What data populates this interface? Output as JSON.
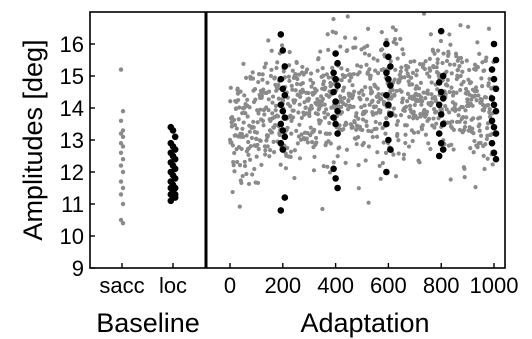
{
  "chart_data": {
    "type": "scatter",
    "ylabel": "Amplitudes [deg]",
    "ylim": [
      9,
      17
    ],
    "yticks": [
      9,
      10,
      11,
      12,
      13,
      14,
      15,
      16
    ],
    "grid": false,
    "baseline_panel": {
      "group_label": "Baseline",
      "categories": [
        "sacc",
        "loc"
      ],
      "series": [
        {
          "category": "sacc",
          "color": "#8a8a8a",
          "values": [
            15.2,
            13.9,
            13.6,
            13.3,
            13.2,
            13.1,
            12.9,
            12.8,
            12.6,
            12.4,
            12.2,
            12.0,
            11.7,
            11.5,
            11.3,
            11.0,
            10.5,
            10.4
          ]
        },
        {
          "category": "loc",
          "color": "#000000",
          "values": [
            13.4,
            13.3,
            13.1,
            12.9,
            12.8,
            12.7,
            12.6,
            12.5,
            12.4,
            12.3,
            12.2,
            12.1,
            12.0,
            11.9,
            11.8,
            11.7,
            11.6,
            11.5,
            11.5,
            11.4,
            11.3,
            11.3,
            11.2,
            11.2,
            11.1
          ]
        }
      ]
    },
    "adaptation_panel": {
      "group_label": "Adaptation",
      "xlim": [
        -50,
        1050
      ],
      "xticks": [
        0,
        200,
        400,
        600,
        800,
        1000
      ],
      "series": [
        {
          "name": "",
          "color": "#8a8a8a",
          "n": 1000,
          "trend": [
            [
              0,
              13.3
            ],
            [
              100,
              13.6
            ],
            [
              200,
              13.9
            ],
            [
              300,
              14.1
            ],
            [
              400,
              14.2
            ],
            [
              600,
              14.3
            ],
            [
              800,
              14.3
            ],
            [
              1000,
              14.2
            ]
          ],
          "spread": 0.95
        },
        {
          "name": "",
          "color": "#000000",
          "points": [
            [
              200,
              16.3
            ],
            [
              200,
              15.8
            ],
            [
              200,
              15.3
            ],
            [
              200,
              14.9
            ],
            [
              200,
              14.6
            ],
            [
              200,
              14.4
            ],
            [
              200,
              14.1
            ],
            [
              200,
              13.9
            ],
            [
              200,
              13.7
            ],
            [
              200,
              13.5
            ],
            [
              200,
              13.3
            ],
            [
              200,
              13.1
            ],
            [
              200,
              12.9
            ],
            [
              200,
              12.7
            ],
            [
              200,
              11.2
            ],
            [
              200,
              10.8
            ],
            [
              400,
              15.7
            ],
            [
              400,
              15.4
            ],
            [
              400,
              15.1
            ],
            [
              400,
              14.9
            ],
            [
              400,
              14.7
            ],
            [
              400,
              14.5
            ],
            [
              400,
              14.2
            ],
            [
              400,
              13.9
            ],
            [
              400,
              13.7
            ],
            [
              400,
              13.5
            ],
            [
              400,
              13.2
            ],
            [
              400,
              12.1
            ],
            [
              400,
              11.8
            ],
            [
              400,
              11.5
            ],
            [
              600,
              16.0
            ],
            [
              600,
              15.6
            ],
            [
              600,
              15.3
            ],
            [
              600,
              15.1
            ],
            [
              600,
              14.9
            ],
            [
              600,
              14.7
            ],
            [
              600,
              14.4
            ],
            [
              600,
              14.1
            ],
            [
              600,
              13.8
            ],
            [
              600,
              13.5
            ],
            [
              600,
              13.0
            ],
            [
              600,
              12.7
            ],
            [
              600,
              12.0
            ],
            [
              800,
              16.4
            ],
            [
              800,
              15.0
            ],
            [
              800,
              14.8
            ],
            [
              800,
              14.5
            ],
            [
              800,
              14.3
            ],
            [
              800,
              14.1
            ],
            [
              800,
              13.8
            ],
            [
              800,
              13.5
            ],
            [
              800,
              13.2
            ],
            [
              800,
              12.9
            ],
            [
              800,
              12.7
            ],
            [
              800,
              12.5
            ],
            [
              1000,
              16.0
            ],
            [
              1000,
              15.5
            ],
            [
              1000,
              15.2
            ],
            [
              1000,
              14.9
            ],
            [
              1000,
              14.6
            ],
            [
              1000,
              14.3
            ],
            [
              1000,
              14.1
            ],
            [
              1000,
              13.9
            ],
            [
              1000,
              13.6
            ],
            [
              1000,
              13.4
            ],
            [
              1000,
              13.2
            ],
            [
              1000,
              12.9
            ],
            [
              1000,
              12.6
            ],
            [
              1000,
              12.4
            ]
          ]
        }
      ]
    }
  }
}
